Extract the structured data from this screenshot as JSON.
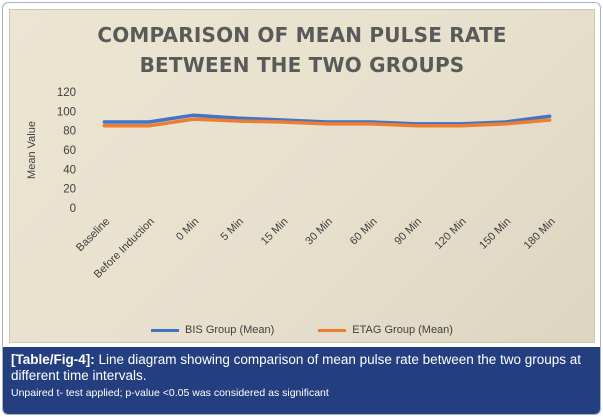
{
  "colors": {
    "bis": "#4472c4",
    "etag": "#ed7d31",
    "caption_bg": "#243f7f",
    "plot_bg": "#e9e2cf"
  },
  "chart_data": {
    "type": "line",
    "title": "COMPARISON OF MEAN PULSE RATE BETWEEN THE TWO GROUPS",
    "title_lines": [
      "COMPARISON OF MEAN PULSE RATE",
      "BETWEEN THE TWO GROUPS"
    ],
    "ylabel": "Mean Value",
    "xlabel": "",
    "ylim": [
      0,
      120
    ],
    "yticks": [
      0,
      20,
      40,
      60,
      80,
      100,
      120
    ],
    "grid": false,
    "legend_position": "bottom",
    "categories": [
      "Baseline",
      "Before Induction",
      "0 Min",
      "5 Min",
      "15 Min",
      "30 Min",
      "60 Min",
      "90 Min",
      "120 Min",
      "150 Min",
      "180 Min"
    ],
    "series": [
      {
        "name": "BIS Group (Mean)",
        "color": "#4472c4",
        "values": [
          89,
          89,
          96,
          93,
          91,
          89,
          89,
          87,
          87,
          89,
          95
        ]
      },
      {
        "name": "ETAG Group (Mean)",
        "color": "#ed7d31",
        "values": [
          85,
          85,
          92,
          90,
          89,
          87,
          87,
          85,
          85,
          87,
          91
        ]
      }
    ]
  },
  "caption": {
    "ref": "[Table/Fig-4]:",
    "text": " Line diagram showing comparison of mean pulse rate between the two groups at different time intervals.",
    "note": "Unpaired t- test applied; p-value <0.05 was considered as significant"
  }
}
